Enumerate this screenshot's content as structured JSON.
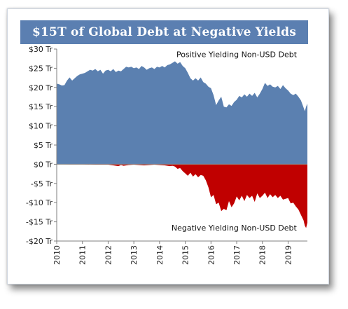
{
  "chart_data": {
    "type": "area",
    "title": "$15T of Global Debt at Negative Yields",
    "xlabel": "",
    "ylabel": "",
    "ylim": [
      -20,
      30
    ],
    "xlim": [
      2010,
      2019.75
    ],
    "y_tick_labels": [
      "$30 Tr",
      "$25 Tr",
      "$20 Tr",
      "$15 Tr",
      "$10 Tr",
      "$5 Tr",
      "$0 Tr",
      "-$5 Tr",
      "-$10 Tr",
      "-$15 Tr",
      "-$20 Tr"
    ],
    "y_tick_values": [
      30,
      25,
      20,
      15,
      10,
      5,
      0,
      -5,
      -10,
      -15,
      -20
    ],
    "x_tick_labels": [
      "2010",
      "2011",
      "2012",
      "2013",
      "2014",
      "2015",
      "2016",
      "2017",
      "2018",
      "2019"
    ],
    "x_tick_values": [
      2010,
      2011,
      2012,
      2013,
      2014,
      2015,
      2016,
      2017,
      2018,
      2019
    ],
    "grid": false,
    "series": [
      {
        "name": "Positive Yielding Non-USD Debt",
        "color": "#5b80b0",
        "x": [
          2010.0,
          2010.1,
          2010.2,
          2010.3,
          2010.4,
          2010.5,
          2010.6,
          2010.7,
          2010.8,
          2010.9,
          2011.0,
          2011.1,
          2011.2,
          2011.3,
          2011.4,
          2011.5,
          2011.6,
          2011.7,
          2011.8,
          2011.9,
          2012.0,
          2012.1,
          2012.2,
          2012.3,
          2012.4,
          2012.5,
          2012.6,
          2012.7,
          2012.8,
          2012.9,
          2013.0,
          2013.1,
          2013.2,
          2013.3,
          2013.4,
          2013.5,
          2013.6,
          2013.7,
          2013.8,
          2013.9,
          2014.0,
          2014.1,
          2014.2,
          2014.3,
          2014.4,
          2014.5,
          2014.6,
          2014.7,
          2014.8,
          2014.9,
          2015.0,
          2015.1,
          2015.2,
          2015.3,
          2015.4,
          2015.5,
          2015.6,
          2015.7,
          2015.8,
          2015.9,
          2016.0,
          2016.1,
          2016.2,
          2016.3,
          2016.4,
          2016.5,
          2016.6,
          2016.7,
          2016.8,
          2016.9,
          2017.0,
          2017.1,
          2017.2,
          2017.3,
          2017.4,
          2017.5,
          2017.6,
          2017.7,
          2017.8,
          2017.9,
          2018.0,
          2018.1,
          2018.2,
          2018.3,
          2018.4,
          2018.5,
          2018.6,
          2018.7,
          2018.8,
          2018.9,
          2019.0,
          2019.1,
          2019.2,
          2019.3,
          2019.4,
          2019.5,
          2019.6,
          2019.65,
          2019.7,
          2019.75
        ],
        "values": [
          21.0,
          20.8,
          20.5,
          20.6,
          21.8,
          22.6,
          21.8,
          22.4,
          23.0,
          23.4,
          23.6,
          23.8,
          24.2,
          24.6,
          24.4,
          24.8,
          24.2,
          24.6,
          23.6,
          24.4,
          24.6,
          24.2,
          24.8,
          24.0,
          24.4,
          24.2,
          24.8,
          25.4,
          25.2,
          25.4,
          25.0,
          25.2,
          24.8,
          25.6,
          25.2,
          24.6,
          25.0,
          25.2,
          24.8,
          25.4,
          25.2,
          25.6,
          25.2,
          25.8,
          26.0,
          26.4,
          26.8,
          26.2,
          26.6,
          25.6,
          25.0,
          23.8,
          22.4,
          21.8,
          22.4,
          21.8,
          22.6,
          21.4,
          21.0,
          20.2,
          19.8,
          18.0,
          15.4,
          16.6,
          17.6,
          15.0,
          14.8,
          15.6,
          15.2,
          16.2,
          16.8,
          17.8,
          17.4,
          18.2,
          17.6,
          18.4,
          17.8,
          18.6,
          17.4,
          18.4,
          19.6,
          21.2,
          20.4,
          20.8,
          20.2,
          20.0,
          20.4,
          19.6,
          20.6,
          19.8,
          19.2,
          18.4,
          18.0,
          18.4,
          17.6,
          16.6,
          14.8,
          13.8,
          15.0,
          15.8
        ]
      },
      {
        "name": "Negative Yielding Non-USD Debt",
        "color": "#c00000",
        "x": [
          2010.0,
          2010.5,
          2011.0,
          2011.5,
          2012.0,
          2012.2,
          2012.4,
          2012.5,
          2012.6,
          2012.8,
          2013.0,
          2013.2,
          2013.4,
          2013.6,
          2013.8,
          2014.0,
          2014.2,
          2014.4,
          2014.5,
          2014.6,
          2014.7,
          2014.8,
          2014.9,
          2015.0,
          2015.1,
          2015.2,
          2015.3,
          2015.4,
          2015.5,
          2015.6,
          2015.7,
          2015.8,
          2015.9,
          2016.0,
          2016.1,
          2016.2,
          2016.3,
          2016.4,
          2016.5,
          2016.6,
          2016.7,
          2016.8,
          2016.9,
          2017.0,
          2017.1,
          2017.2,
          2017.3,
          2017.4,
          2017.5,
          2017.6,
          2017.7,
          2017.8,
          2017.9,
          2018.0,
          2018.1,
          2018.2,
          2018.3,
          2018.4,
          2018.5,
          2018.6,
          2018.7,
          2018.8,
          2018.9,
          2019.0,
          2019.1,
          2019.2,
          2019.3,
          2019.4,
          2019.5,
          2019.6,
          2019.65,
          2019.7,
          2019.75
        ],
        "values": [
          0.0,
          -0.05,
          -0.05,
          -0.1,
          -0.1,
          -0.3,
          -0.5,
          -0.2,
          -0.4,
          -0.2,
          -0.1,
          -0.2,
          -0.3,
          -0.2,
          -0.1,
          -0.2,
          -0.3,
          -0.5,
          -0.4,
          -0.6,
          -1.2,
          -1.0,
          -1.8,
          -2.4,
          -3.0,
          -2.2,
          -3.2,
          -2.6,
          -3.4,
          -2.8,
          -3.0,
          -4.2,
          -6.0,
          -8.6,
          -8.0,
          -10.4,
          -10.0,
          -12.2,
          -11.6,
          -12.0,
          -9.6,
          -11.2,
          -10.2,
          -8.4,
          -9.4,
          -8.2,
          -9.6,
          -8.0,
          -8.8,
          -8.2,
          -9.8,
          -7.6,
          -8.8,
          -8.2,
          -7.4,
          -8.8,
          -7.8,
          -8.6,
          -8.0,
          -8.8,
          -8.2,
          -9.2,
          -9.0,
          -8.8,
          -10.2,
          -10.0,
          -11.0,
          -11.8,
          -13.2,
          -14.6,
          -16.0,
          -16.6,
          -15.2
        ]
      }
    ],
    "annotations": [
      {
        "text": "Positive Yielding Non-USD Debt",
        "x": 2017.0,
        "y": 27.9
      },
      {
        "text": "Negative Yielding Non-USD Debt",
        "x": 2016.9,
        "y": -17.3
      }
    ]
  }
}
